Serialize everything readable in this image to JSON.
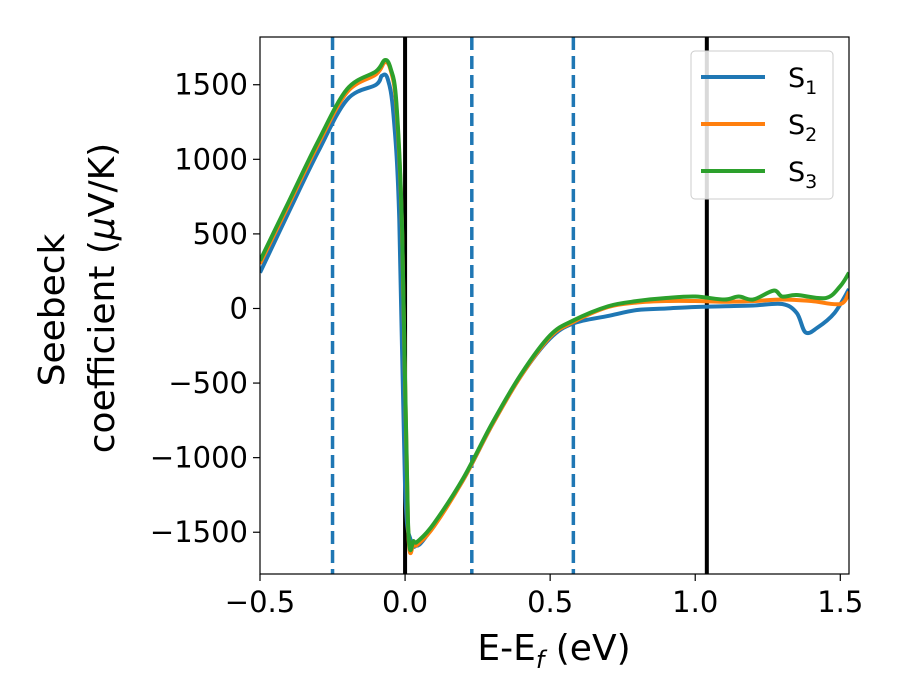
{
  "chart_data": {
    "type": "line",
    "xlabel": {
      "main": "E-E",
      "sub": "f",
      "suffix": " (eV)"
    },
    "ylabel": {
      "line1": "Seebeck",
      "line2_text": "coefficient  (",
      "line2_mu": "μ",
      "line2_unit": "V/K)"
    },
    "xlim": [
      -0.5,
      1.53
    ],
    "ylim": [
      -1780,
      1820
    ],
    "x_ticks": [
      -0.5,
      0.0,
      0.5,
      1.0,
      1.5
    ],
    "x_tick_labels": [
      "−0.5",
      "0.0",
      "0.5",
      "1.0",
      "1.5"
    ],
    "y_ticks": [
      -1500,
      -1000,
      -500,
      0,
      500,
      1000,
      1500
    ],
    "y_tick_labels": [
      "−1500",
      "−1000",
      "−500",
      "0",
      "500",
      "1000",
      "1500"
    ],
    "grid": false,
    "legend_position": "top-right",
    "vlines_solid": [
      0.0,
      1.04
    ],
    "vlines_dashed": [
      -0.25,
      0.23,
      0.58
    ],
    "vline_solid_color": "#000000",
    "vline_dashed_color": "#1f77b4",
    "series": [
      {
        "name": "S",
        "sub": "1",
        "color": "#1f77b4",
        "points": [
          [
            -0.5,
            240
          ],
          [
            -0.4,
            650
          ],
          [
            -0.3,
            1050
          ],
          [
            -0.2,
            1400
          ],
          [
            -0.1,
            1500
          ],
          [
            -0.08,
            1560
          ],
          [
            -0.06,
            1540
          ],
          [
            -0.04,
            1300
          ],
          [
            -0.02,
            600
          ],
          [
            0.0,
            -1200
          ],
          [
            0.02,
            -1560
          ],
          [
            0.04,
            -1590
          ],
          [
            0.06,
            -1560
          ],
          [
            0.1,
            -1450
          ],
          [
            0.2,
            -1150
          ],
          [
            0.3,
            -780
          ],
          [
            0.4,
            -450
          ],
          [
            0.5,
            -200
          ],
          [
            0.58,
            -100
          ],
          [
            0.7,
            -50
          ],
          [
            0.8,
            -10
          ],
          [
            0.9,
            0
          ],
          [
            1.0,
            10
          ],
          [
            1.1,
            15
          ],
          [
            1.2,
            20
          ],
          [
            1.3,
            30
          ],
          [
            1.35,
            -30
          ],
          [
            1.38,
            -160
          ],
          [
            1.42,
            -130
          ],
          [
            1.48,
            -30
          ],
          [
            1.53,
            130
          ]
        ]
      },
      {
        "name": "S",
        "sub": "2",
        "color": "#ff7f0e",
        "points": [
          [
            -0.5,
            300
          ],
          [
            -0.4,
            700
          ],
          [
            -0.3,
            1100
          ],
          [
            -0.2,
            1450
          ],
          [
            -0.1,
            1570
          ],
          [
            -0.07,
            1650
          ],
          [
            -0.05,
            1600
          ],
          [
            -0.03,
            1350
          ],
          [
            -0.01,
            500
          ],
          [
            0.01,
            -1450
          ],
          [
            0.03,
            -1580
          ],
          [
            0.05,
            -1570
          ],
          [
            0.1,
            -1460
          ],
          [
            0.2,
            -1150
          ],
          [
            0.3,
            -780
          ],
          [
            0.4,
            -450
          ],
          [
            0.5,
            -190
          ],
          [
            0.58,
            -90
          ],
          [
            0.7,
            10
          ],
          [
            0.8,
            40
          ],
          [
            0.9,
            50
          ],
          [
            1.0,
            50
          ],
          [
            1.1,
            45
          ],
          [
            1.2,
            50
          ],
          [
            1.3,
            60
          ],
          [
            1.4,
            50
          ],
          [
            1.5,
            30
          ],
          [
            1.53,
            110
          ]
        ]
      },
      {
        "name": "S",
        "sub": "3",
        "color": "#2ca02c",
        "points": [
          [
            -0.5,
            320
          ],
          [
            -0.4,
            720
          ],
          [
            -0.3,
            1120
          ],
          [
            -0.2,
            1470
          ],
          [
            -0.1,
            1590
          ],
          [
            -0.07,
            1665
          ],
          [
            -0.05,
            1610
          ],
          [
            -0.03,
            1380
          ],
          [
            -0.01,
            520
          ],
          [
            0.01,
            -1430
          ],
          [
            0.03,
            -1560
          ],
          [
            0.05,
            -1550
          ],
          [
            0.1,
            -1440
          ],
          [
            0.2,
            -1140
          ],
          [
            0.3,
            -770
          ],
          [
            0.4,
            -440
          ],
          [
            0.5,
            -180
          ],
          [
            0.58,
            -80
          ],
          [
            0.7,
            15
          ],
          [
            0.8,
            50
          ],
          [
            0.9,
            70
          ],
          [
            1.0,
            80
          ],
          [
            1.1,
            60
          ],
          [
            1.15,
            80
          ],
          [
            1.2,
            60
          ],
          [
            1.27,
            120
          ],
          [
            1.3,
            80
          ],
          [
            1.35,
            90
          ],
          [
            1.45,
            70
          ],
          [
            1.5,
            150
          ],
          [
            1.53,
            240
          ]
        ]
      }
    ]
  }
}
